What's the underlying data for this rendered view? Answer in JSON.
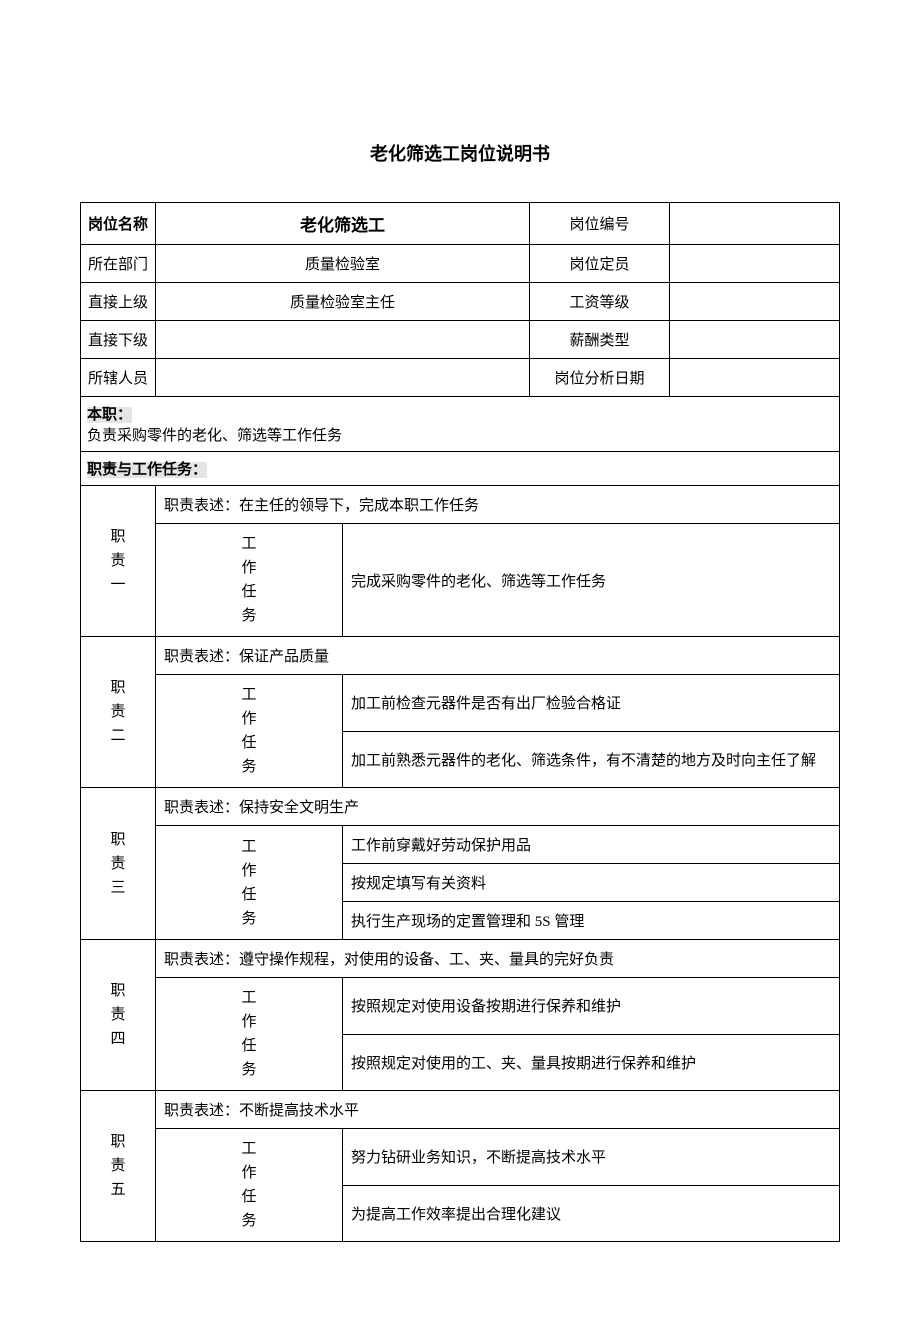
{
  "title": "老化筛选工岗位说明书",
  "headerRows": [
    {
      "label": "岗位名称",
      "value1": "老化筛选工",
      "label2": "岗位编号",
      "value2": "",
      "boldLabel": true,
      "boldValue1": true
    },
    {
      "label": "所在部门",
      "value1": "质量检验室",
      "label2": "岗位定员",
      "value2": ""
    },
    {
      "label": "直接上级",
      "value1": "质量检验室主任",
      "label2": "工资等级",
      "value2": ""
    },
    {
      "label": "直接下级",
      "value1": "",
      "label2": "薪酬类型",
      "value2": ""
    },
    {
      "label": "所辖人员",
      "value1": "",
      "label2": "岗位分析日期",
      "value2": ""
    }
  ],
  "sections": {
    "summary": {
      "heading": "本职：",
      "text": "负责采购零件的老化、筛选等工作任务"
    },
    "dutiesHeading": "职责与工作任务："
  },
  "duties": [
    {
      "label": "职责一",
      "desc": "职责表述：在主任的领导下，完成本职工作任务",
      "taskLabel": "工作任务",
      "tasks": [
        "完成采购零件的老化、筛选等工作任务"
      ]
    },
    {
      "label": "职责二",
      "desc": "职责表述：保证产品质量",
      "taskLabel": "工作任务",
      "tasks": [
        "加工前检查元器件是否有出厂检验合格证",
        "加工前熟悉元器件的老化、筛选条件，有不清楚的地方及时向主任了解"
      ]
    },
    {
      "label": "职责三",
      "desc": "职责表述：保持安全文明生产",
      "taskLabel": "工作任务",
      "tasks": [
        "工作前穿戴好劳动保护用品",
        "按规定填写有关资料",
        "执行生产现场的定置管理和 5S 管理"
      ]
    },
    {
      "label": "职责四",
      "desc": "职责表述：遵守操作规程，对使用的设备、工、夹、量具的完好负责",
      "taskLabel": "工作任务",
      "tasks": [
        "按照规定对使用设备按期进行保养和维护",
        "按照规定对使用的工、夹、量具按期进行保养和维护"
      ]
    },
    {
      "label": "职责五",
      "desc": "职责表述：不断提高技术水平",
      "taskLabel": "工作任务",
      "tasks": [
        "努力钻研业务知识，不断提高技术水平",
        "为提高工作效率提出合理化建议"
      ]
    }
  ]
}
